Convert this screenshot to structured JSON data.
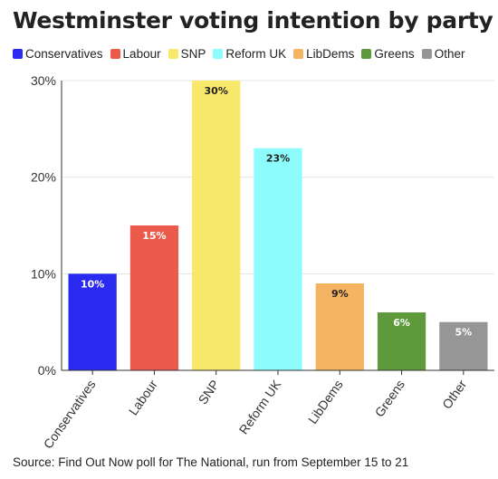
{
  "chart_data": {
    "type": "bar",
    "title": "Westminster voting intention by party",
    "categories": [
      "Conservatives",
      "Labour",
      "SNP",
      "Reform UK",
      "LibDems",
      "Greens",
      "Other"
    ],
    "values": [
      10,
      15,
      30,
      23,
      9,
      6,
      5
    ],
    "data_labels": [
      "10%",
      "15%",
      "30%",
      "23%",
      "9%",
      "6%",
      "5%"
    ],
    "colors": [
      "#2a2af0",
      "#ec5a4c",
      "#f8e86c",
      "#8dfcfc",
      "#f4b461",
      "#5e9a3c",
      "#969696"
    ],
    "label_colors": [
      "#ffffff",
      "#ffffff",
      "#222222",
      "#222222",
      "#222222",
      "#ffffff",
      "#ffffff"
    ],
    "ylim": [
      0,
      30
    ],
    "yticks": [
      0,
      10,
      20,
      30
    ],
    "ytick_labels": [
      "0%",
      "10%",
      "20%",
      "30%"
    ],
    "xlabel": "",
    "ylabel": "",
    "grid": true,
    "legend_position": "top"
  },
  "legend": [
    {
      "label": "Conservatives",
      "color": "#2a2af0"
    },
    {
      "label": "Labour",
      "color": "#ec5a4c"
    },
    {
      "label": "SNP",
      "color": "#f8e86c"
    },
    {
      "label": "Reform UK",
      "color": "#8dfcfc"
    },
    {
      "label": "LibDems",
      "color": "#f4b461"
    },
    {
      "label": "Greens",
      "color": "#5e9a3c"
    },
    {
      "label": "Other",
      "color": "#969696"
    }
  ],
  "source": "Source: Find Out Now poll for The National, run from September 15 to 21"
}
